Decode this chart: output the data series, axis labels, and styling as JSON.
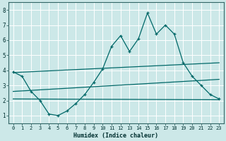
{
  "background_color": "#cce8e8",
  "grid_color": "#ffffff",
  "line_color": "#006868",
  "xlabel": "Humidex (Indice chaleur)",
  "xlim": [
    -0.5,
    23.5
  ],
  "ylim": [
    0.5,
    8.5
  ],
  "yticks": [
    1,
    2,
    3,
    4,
    5,
    6,
    7,
    8
  ],
  "xticks": [
    0,
    1,
    2,
    3,
    4,
    5,
    6,
    7,
    8,
    9,
    10,
    11,
    12,
    13,
    14,
    15,
    16,
    17,
    18,
    19,
    20,
    21,
    22,
    23
  ],
  "line1_x": [
    0,
    1,
    2,
    3,
    4,
    5,
    6,
    7,
    8,
    9,
    10,
    11,
    12,
    13,
    14,
    15,
    16,
    17,
    18,
    19,
    20,
    21,
    22,
    23
  ],
  "line1_y": [
    3.9,
    3.6,
    2.6,
    2.0,
    1.1,
    1.0,
    1.3,
    1.8,
    2.4,
    3.2,
    4.1,
    5.6,
    6.3,
    5.25,
    6.1,
    7.8,
    6.4,
    7.0,
    6.4,
    4.5,
    3.6,
    3.0,
    2.4,
    2.1
  ],
  "line2_x": [
    0,
    23
  ],
  "line2_y": [
    3.85,
    4.5
  ],
  "line3_x": [
    0,
    23
  ],
  "line3_y": [
    2.1,
    2.05
  ],
  "line4_x": [
    0,
    23
  ],
  "line4_y": [
    2.6,
    3.4
  ]
}
